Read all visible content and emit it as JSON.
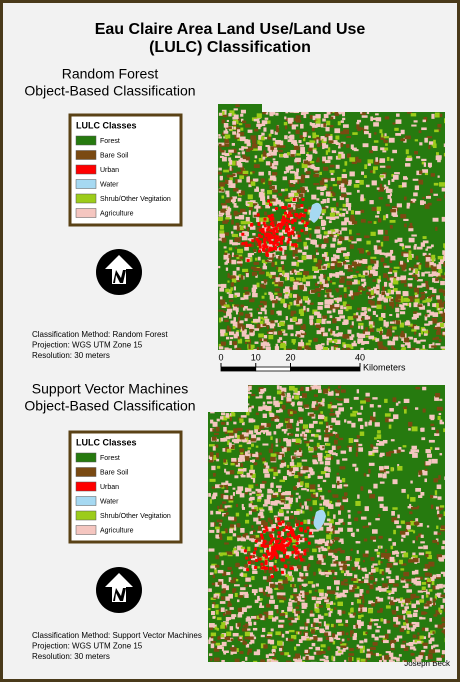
{
  "title_lines": [
    "Eau Claire Area Land Use/Land Use",
    "(LULC) Classification"
  ],
  "panels": [
    {
      "heading": [
        "Random Forest",
        "Object-Based Classification"
      ],
      "notes": [
        "Classification Method: Random Forest",
        "Projection: WGS UTM Zone 15",
        "Resolution: 30 meters"
      ]
    },
    {
      "heading": [
        "Support Vector Machines",
        "Object-Based Classification"
      ],
      "notes": [
        "Classification Method: Support Vector Machines",
        "Projection: WGS UTM Zone 15",
        "Resolution: 30 meters"
      ]
    }
  ],
  "legend": {
    "title": "LULC Classes",
    "classes": [
      {
        "label": "Forest",
        "color": "#267a0f"
      },
      {
        "label": "Bare Soil",
        "color": "#7a4a12"
      },
      {
        "label": "Urban",
        "color": "#ff0000"
      },
      {
        "label": "Water",
        "color": "#a6d9f2"
      },
      {
        "label": "Shrub/Other Vegitation",
        "color": "#9ccc1a"
      },
      {
        "label": "Agriculture",
        "color": "#f5c6c0"
      }
    ]
  },
  "scale_bar": {
    "ticks": [
      0,
      10,
      20,
      40
    ],
    "unit": "Kilometers"
  },
  "author": "Joseph Beck"
}
